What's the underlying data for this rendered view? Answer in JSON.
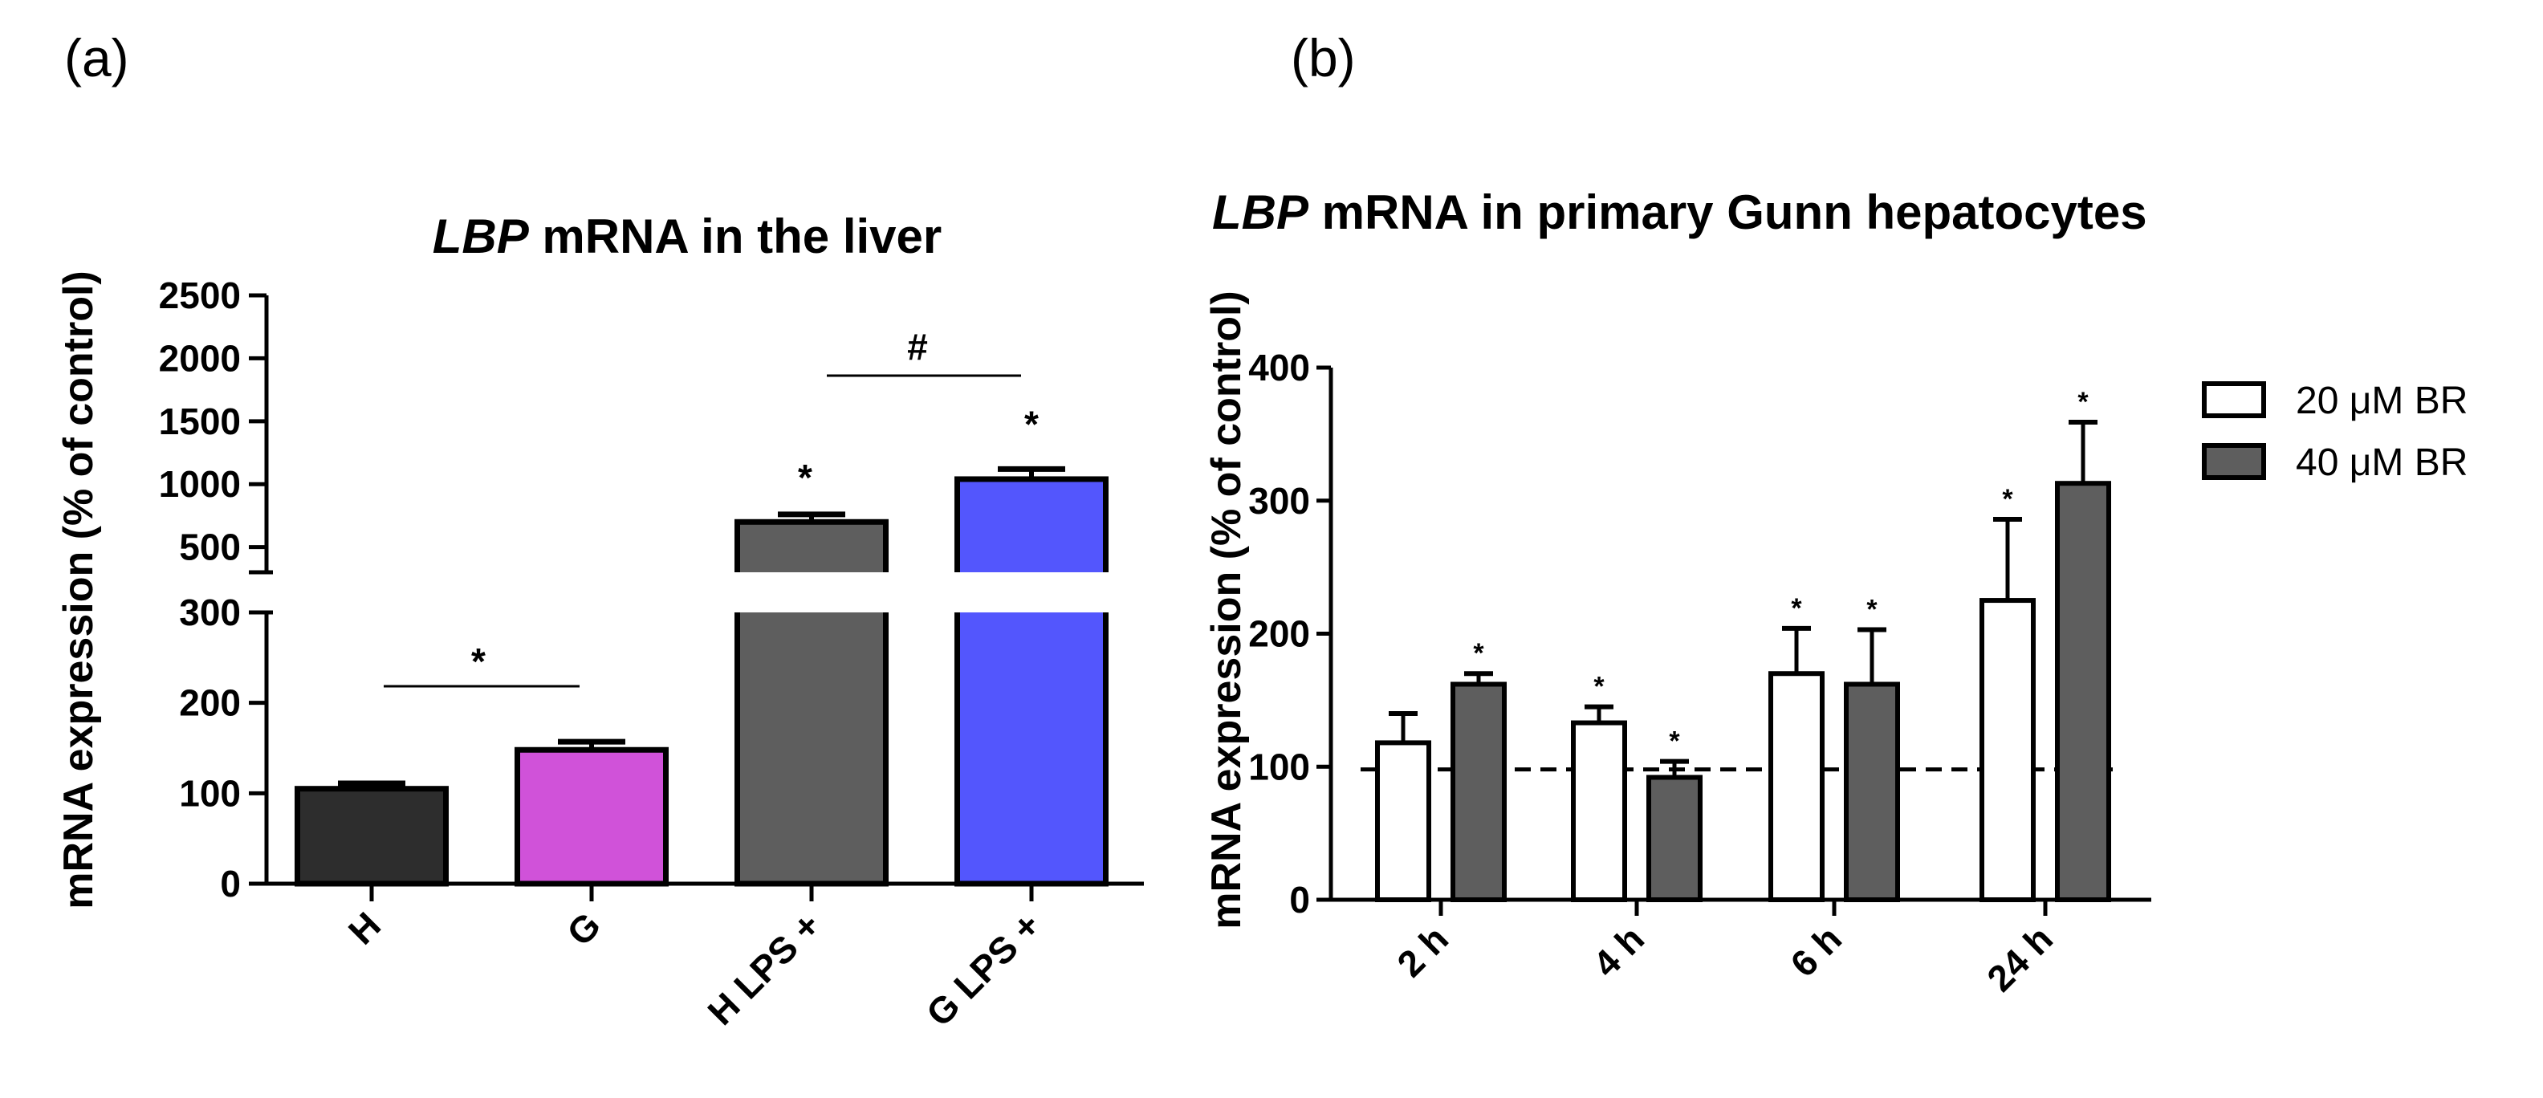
{
  "figure": {
    "panel_a_label": "(a)",
    "panel_b_label": "(b)"
  },
  "chart_data": [
    {
      "type": "bar",
      "title_italic": "LBP",
      "title_rest": " mRNA in the liver",
      "ylabel": "mRNA expression (% of control)",
      "xlabel": "",
      "categories": [
        "H",
        "G",
        "H LPS +",
        "G LPS +"
      ],
      "values": [
        105,
        148,
        700,
        1040
      ],
      "errors": [
        6,
        9,
        60,
        80
      ],
      "colors": [
        "#2d2d2d",
        "#d052d9",
        "#5e5e5e",
        "#5356fd"
      ],
      "axis_break": {
        "lower_max": 300,
        "upper_min": 300,
        "upper_max": 2500
      },
      "lower_ticks": [
        "0",
        "100",
        "200",
        "300"
      ],
      "upper_ticks": [
        "500",
        "1000",
        "1500",
        "2000",
        "2500"
      ],
      "bar_significance": [
        "",
        "",
        "*",
        "*"
      ],
      "brackets": [
        {
          "from": "H",
          "to": "G",
          "label": "*"
        },
        {
          "from": "H LPS +",
          "to": "G LPS +",
          "label": "#"
        }
      ]
    },
    {
      "type": "bar",
      "title_italic": "LBP",
      "title_rest": " mRNA in primary Gunn hepatocytes",
      "ylabel": "mRNA expression (% of control)",
      "xlabel": "",
      "categories": [
        "2 h",
        "4 h",
        "6 h",
        "24 h"
      ],
      "ylim": [
        0,
        400
      ],
      "yticks": [
        "0",
        "100",
        "200",
        "300",
        "400"
      ],
      "reference_line": 98,
      "series": [
        {
          "name": "20 μM BR",
          "color": "#ffffff",
          "values": [
            118,
            133,
            170,
            225
          ],
          "errors": [
            22,
            12,
            34,
            61
          ],
          "significance": [
            "",
            "*",
            "*",
            "*"
          ]
        },
        {
          "name": "40 μM BR",
          "color": "#5e5e5e",
          "values": [
            162,
            92,
            162,
            313
          ],
          "errors": [
            8,
            12,
            41,
            46
          ],
          "significance": [
            "*",
            "*",
            "*",
            "*"
          ]
        }
      ]
    }
  ]
}
